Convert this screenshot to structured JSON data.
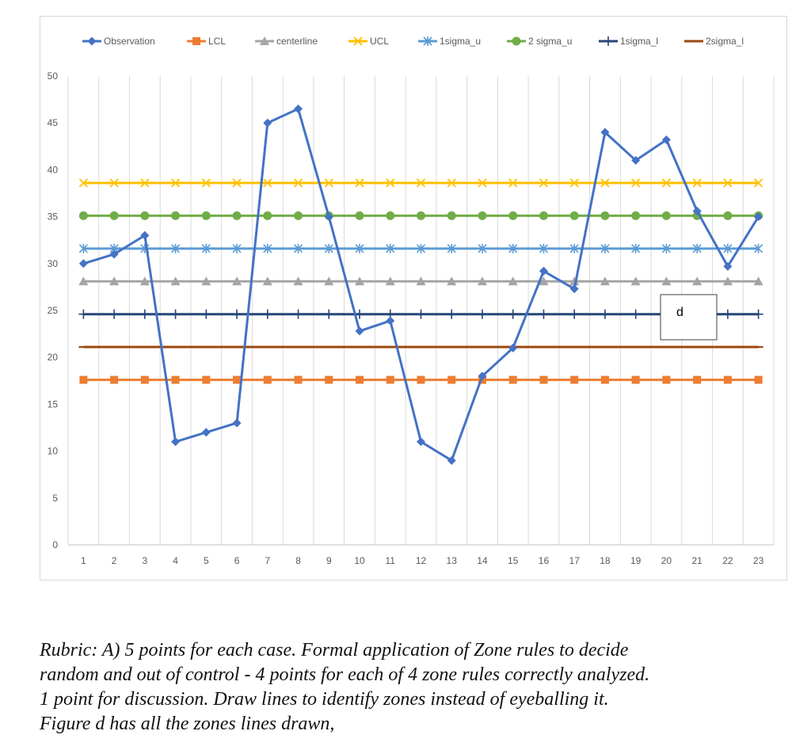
{
  "chart_data": {
    "type": "line",
    "title": "",
    "xlabel": "",
    "ylabel": "",
    "categories": [
      "1",
      "2",
      "3",
      "4",
      "5",
      "6",
      "7",
      "8",
      "9",
      "10",
      "11",
      "12",
      "13",
      "14",
      "15",
      "16",
      "17",
      "18",
      "19",
      "20",
      "21",
      "22",
      "23"
    ],
    "ylim": [
      0,
      50
    ],
    "yticks": [
      0,
      5,
      10,
      15,
      20,
      25,
      30,
      35,
      40,
      45,
      50
    ],
    "grid": "vertical",
    "legend_position": "top",
    "series": [
      {
        "name": "Observation",
        "color": "#4472C4",
        "marker": "diamond",
        "values": [
          30,
          31,
          33,
          11,
          12,
          13,
          45,
          46.5,
          35,
          22.8,
          23.9,
          11,
          9,
          18,
          21,
          29.2,
          27.3,
          44,
          41,
          43.2,
          35.6,
          29.7,
          35
        ]
      },
      {
        "name": "LCL",
        "color": "#ED7D31",
        "marker": "square",
        "constant": 17.6
      },
      {
        "name": "centerline",
        "color": "#A5A5A5",
        "marker": "triangle",
        "constant": 28.1
      },
      {
        "name": "UCL",
        "color": "#FFC000",
        "marker": "x",
        "constant": 38.6
      },
      {
        "name": "1sigma_u",
        "color": "#5B9BD5",
        "marker": "star",
        "constant": 31.6
      },
      {
        "name": "2 sigma_u",
        "color": "#70AD47",
        "marker": "circle",
        "constant": 35.1
      },
      {
        "name": "1sigma_l",
        "color": "#264478",
        "marker": "plus",
        "constant": 24.6
      },
      {
        "name": "2sigma_l",
        "color": "#9E480E",
        "marker": "dash",
        "constant": 21.1
      }
    ],
    "annotations": [
      {
        "text": "d",
        "near_category": "19-20"
      }
    ]
  },
  "rubric": {
    "line1": "Rubric: A) 5 points for each case.  Formal application of Zone rules to decide",
    "line2": "random and out of control - 4 points for each of 4 zone rules correctly analyzed.",
    "line3": "1 point for discussion.  Draw lines to  identify zones instead of eyeballing it.",
    "line4": "Figure d has all the zones lines drawn,"
  }
}
